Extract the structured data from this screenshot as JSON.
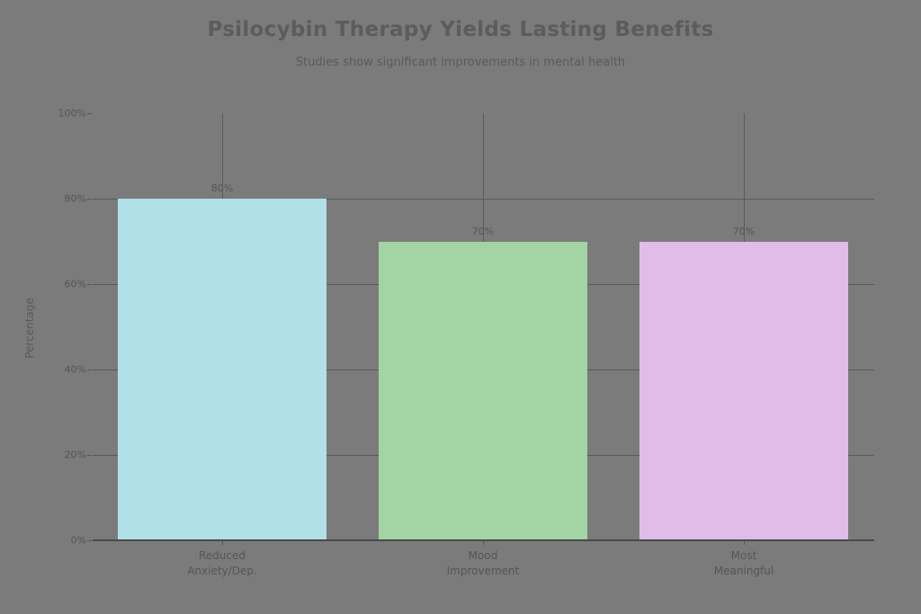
{
  "header": {
    "title": "Psilocybin Therapy Yields Lasting Benefits",
    "subtitle": "Studies show significant improvements in mental health"
  },
  "axes": {
    "ylabel": "Percentage",
    "yticks": [
      "0%",
      "20%",
      "40%",
      "60%",
      "80%",
      "100%"
    ]
  },
  "bars": [
    {
      "line1": "Reduced",
      "line2": "Anxiety/Dep.",
      "value_label": "80%",
      "color": "#b0e0e8"
    },
    {
      "line1": "Mood",
      "line2": "Improvement",
      "value_label": "70%",
      "color": "#a2d4a4"
    },
    {
      "line1": "Most",
      "line2": "Meaningful",
      "value_label": "70%",
      "color": "#e0bce8"
    }
  ],
  "chart_data": {
    "type": "bar",
    "title": "Psilocybin Therapy Yields Lasting Benefits",
    "subtitle": "Studies show significant improvements in mental health",
    "categories": [
      "Reduced Anxiety/Dep.",
      "Mood Improvement",
      "Most Meaningful"
    ],
    "values": [
      80,
      70,
      70
    ],
    "data_labels": [
      "80%",
      "70%",
      "70%"
    ],
    "colors": [
      "#b0e0e8",
      "#a2d4a4",
      "#e0bce8"
    ],
    "xlabel": "",
    "ylabel": "Percentage",
    "ylim": [
      0,
      100
    ],
    "yticks": [
      0,
      20,
      40,
      60,
      80,
      100
    ],
    "ytick_format": "percent",
    "grid": true,
    "legend": null
  }
}
